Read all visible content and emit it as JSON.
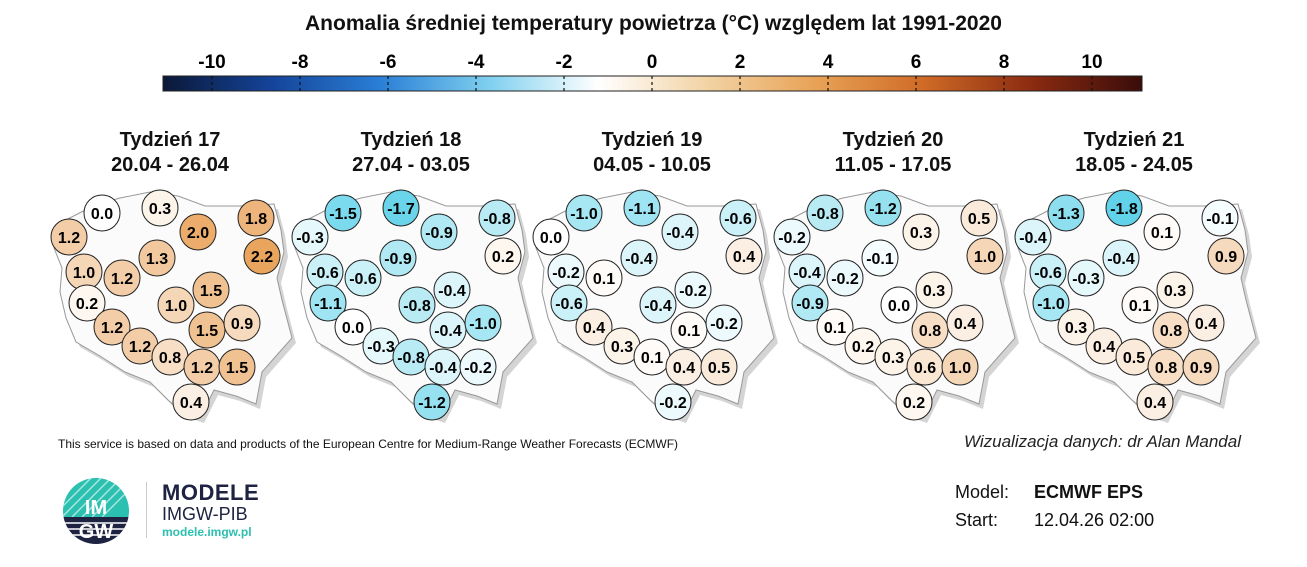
{
  "title": "Anomalia średniej temperatury powietrza (°C) względem lat 1991-2020",
  "colorbar": {
    "ticks": [
      "-10",
      "-8",
      "-6",
      "-4",
      "-2",
      "0",
      "2",
      "4",
      "6",
      "8",
      "10"
    ],
    "colors": [
      "#0b1838",
      "#14449a",
      "#2a7fd6",
      "#7fd0ef",
      "#ffffff",
      "#f2d3a4",
      "#e8a256",
      "#cf6a26",
      "#8a2a10",
      "#3a0c0a"
    ]
  },
  "weeks": [
    {
      "label": "Tydzień 17",
      "dates": "20.04 - 26.04",
      "values": [
        0.0,
        0.3,
        1.2,
        2.0,
        1.8,
        2.2,
        1.3,
        1.0,
        1.2,
        0.2,
        1.0,
        1.5,
        1.2,
        1.5,
        0.9,
        1.2,
        0.8,
        1.2,
        1.5,
        0.4
      ]
    },
    {
      "label": "Tydzień 18",
      "dates": "27.04 - 03.05",
      "values": [
        -1.5,
        -1.7,
        -0.3,
        -0.9,
        -0.8,
        0.2,
        -0.9,
        -0.6,
        -0.6,
        -1.1,
        -0.8,
        -0.4,
        0.0,
        -0.4,
        -1.0,
        -0.3,
        -0.8,
        -0.4,
        -0.2,
        -1.2
      ]
    },
    {
      "label": "Tydzień 19",
      "dates": "04.05 - 10.05",
      "values": [
        -1.0,
        -1.1,
        0.0,
        -0.4,
        -0.6,
        0.4,
        -0.4,
        -0.2,
        0.1,
        -0.6,
        -0.4,
        -0.2,
        0.4,
        0.1,
        -0.2,
        0.3,
        0.1,
        0.4,
        0.5,
        -0.2
      ]
    },
    {
      "label": "Tydzień 20",
      "dates": "11.05 - 17.05",
      "values": [
        -0.8,
        -1.2,
        -0.2,
        0.3,
        0.5,
        1.0,
        -0.1,
        -0.4,
        -0.2,
        -0.9,
        0.0,
        0.3,
        0.1,
        0.8,
        0.4,
        0.2,
        0.3,
        0.6,
        1.0,
        0.2
      ]
    },
    {
      "label": "Tydzień 21",
      "dates": "18.05 - 24.05",
      "values": [
        -1.3,
        -1.8,
        -0.4,
        0.1,
        -0.1,
        0.9,
        -0.4,
        -0.6,
        -0.3,
        -1.0,
        0.1,
        0.3,
        0.3,
        0.8,
        0.4,
        0.4,
        0.5,
        0.8,
        0.9,
        0.4
      ]
    }
  ],
  "footer": {
    "source": "This service is based on data and products of the European Centre for Medium-Range Weather Forecasts (ECMWF)",
    "credit": "Wizualizacja danych: dr Alan Mandal",
    "model_label": "Model:",
    "model_value": "ECMWF EPS",
    "start_label": "Start:",
    "start_value": "12.04.26 02:00"
  },
  "logo": {
    "mark_text": "IMGW",
    "name": "MODELE",
    "org": "IMGW-PIB",
    "url": "modele.imgw.pl",
    "accent": "#2cc0b0",
    "dark": "#1d2340"
  }
}
